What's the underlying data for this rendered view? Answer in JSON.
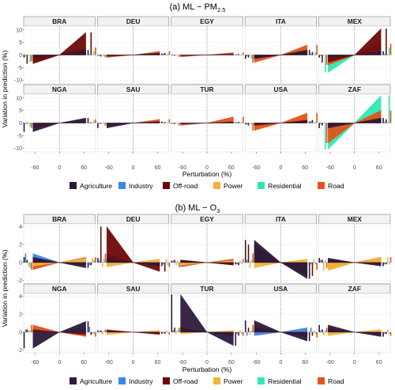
{
  "colors": {
    "Agriculture": "#2d1a3a",
    "Industry": "#3f86e6",
    "Off-road": "#6b0a0a",
    "Power": "#f4b23a",
    "Residential": "#2ee8b4",
    "Road": "#e2531a"
  },
  "chart_data": [
    {
      "type": "area",
      "title_main": "(a) ML − PM",
      "title_sub": "2.5",
      "xlabel": "Perturbation (%)",
      "ylabel": "Variation in prediction (%)",
      "x": [
        -80,
        80
      ],
      "xticks": [
        "-60",
        "0",
        "60"
      ],
      "xtick_values": [
        -60,
        0,
        60
      ],
      "ylim": [
        -11.5,
        11.5
      ],
      "yticks": [
        -10,
        -5,
        0,
        5,
        10
      ],
      "ytick_labels": [
        "-10",
        "-5",
        "0",
        "5",
        "10"
      ],
      "legend": [
        "Agriculture",
        "Industry",
        "Off-road",
        "Power",
        "Residential",
        "Road"
      ],
      "panels": [
        {
          "name": "BRA",
          "series": {
            "Agriculture": [
              -1.0,
              2.0
            ],
            "Industry": [
              -0.3,
              0.3
            ],
            "Off-road": [
              -3.5,
              9.0
            ],
            "Power": [
              -0.2,
              0.2
            ],
            "Residential": [
              -2.8,
              1.5
            ],
            "Road": [
              -2.5,
              3.0
            ]
          }
        },
        {
          "name": "DEU",
          "series": {
            "Agriculture": [
              -0.3,
              0.6
            ],
            "Industry": [
              -0.4,
              0.5
            ],
            "Off-road": [
              -0.6,
              0.8
            ],
            "Power": [
              -0.1,
              0.1
            ],
            "Residential": [
              -0.5,
              0.4
            ],
            "Road": [
              -1.0,
              1.5
            ]
          }
        },
        {
          "name": "EGY",
          "series": {
            "Agriculture": [
              -0.2,
              0.2
            ],
            "Industry": [
              -0.2,
              0.3
            ],
            "Off-road": [
              -0.3,
              0.4
            ],
            "Power": [
              -0.1,
              0.1
            ],
            "Residential": [
              -0.2,
              0.2
            ],
            "Road": [
              -0.8,
              1.0
            ]
          }
        },
        {
          "name": "ITA",
          "series": {
            "Agriculture": [
              -1.5,
              2.0
            ],
            "Industry": [
              -0.5,
              0.6
            ],
            "Off-road": [
              -1.0,
              1.2
            ],
            "Power": [
              -0.1,
              0.1
            ],
            "Residential": [
              -1.5,
              1.2
            ],
            "Road": [
              -3.0,
              4.0
            ]
          }
        },
        {
          "name": "MEX",
          "series": {
            "Agriculture": [
              -1.0,
              1.5
            ],
            "Industry": [
              -0.5,
              0.5
            ],
            "Off-road": [
              -3.0,
              10.5
            ],
            "Power": [
              -0.2,
              0.2
            ],
            "Residential": [
              -7.0,
              3.0
            ],
            "Road": [
              -4.0,
              4.5
            ]
          }
        },
        {
          "name": "NGA",
          "series": {
            "Agriculture": [
              -3.5,
              2.0
            ],
            "Industry": [
              -0.2,
              0.2
            ],
            "Off-road": [
              -0.3,
              0.3
            ],
            "Power": [
              -0.1,
              0.1
            ],
            "Residential": [
              -1.5,
              1.0
            ],
            "Road": [
              -2.0,
              1.5
            ]
          }
        },
        {
          "name": "SAU",
          "series": {
            "Agriculture": [
              -2.0,
              0.6
            ],
            "Industry": [
              -0.3,
              0.3
            ],
            "Off-road": [
              -0.3,
              0.4
            ],
            "Power": [
              -0.1,
              0.1
            ],
            "Residential": [
              -0.4,
              0.3
            ],
            "Road": [
              -1.0,
              1.5
            ]
          }
        },
        {
          "name": "TUR",
          "series": {
            "Agriculture": [
              -0.3,
              0.3
            ],
            "Industry": [
              -0.3,
              0.3
            ],
            "Off-road": [
              -0.4,
              0.5
            ],
            "Power": [
              -0.1,
              0.1
            ],
            "Residential": [
              -0.3,
              0.3
            ],
            "Road": [
              -1.0,
              2.5
            ]
          }
        },
        {
          "name": "USA",
          "series": {
            "Agriculture": [
              -0.5,
              0.6
            ],
            "Industry": [
              -0.6,
              0.8
            ],
            "Off-road": [
              -1.0,
              1.2
            ],
            "Power": [
              -0.1,
              0.1
            ],
            "Residential": [
              -0.5,
              0.5
            ],
            "Road": [
              -3.0,
              4.0
            ]
          }
        },
        {
          "name": "ZAF",
          "series": {
            "Agriculture": [
              -2.0,
              2.0
            ],
            "Industry": [
              -0.5,
              0.5
            ],
            "Off-road": [
              -1.0,
              1.5
            ],
            "Power": [
              -0.2,
              0.2
            ],
            "Residential": [
              -10.5,
              11.0
            ],
            "Road": [
              -8.0,
              5.0
            ]
          }
        }
      ]
    },
    {
      "type": "area",
      "title_main": "(b) ML − O",
      "title_sub": "3",
      "xlabel": "Perturbation (%)",
      "ylabel": "Variation in prediction (%)",
      "x": [
        -80,
        80
      ],
      "xticks": [
        "-60",
        "0",
        "60"
      ],
      "xtick_values": [
        -60,
        0,
        60
      ],
      "ylim": [
        -2.3,
        4.3
      ],
      "yticks": [
        -2,
        0,
        2,
        4
      ],
      "ytick_labels": [
        "-2",
        "0",
        "2",
        "4"
      ],
      "legend": [
        "Agriculture",
        "Industry",
        "Off-road",
        "Power",
        "Residential",
        "Road"
      ],
      "panels": [
        {
          "name": "BRA",
          "series": {
            "Agriculture": [
              0.6,
              -0.6
            ],
            "Industry": [
              1.0,
              -0.3
            ],
            "Off-road": [
              0.3,
              -0.3
            ],
            "Power": [
              -0.4,
              0.5
            ],
            "Residential": [
              -0.6,
              0.3
            ],
            "Road": [
              -0.8,
              0.6
            ]
          }
        },
        {
          "name": "DEU",
          "series": {
            "Agriculture": [
              0.5,
              -0.4
            ],
            "Industry": [
              0.2,
              -0.2
            ],
            "Off-road": [
              4.0,
              -1.0
            ],
            "Power": [
              -0.5,
              0.4
            ],
            "Residential": [
              0.4,
              -0.3
            ],
            "Road": [
              1.0,
              -0.5
            ]
          }
        },
        {
          "name": "EGY",
          "series": {
            "Agriculture": [
              0.2,
              -0.2
            ],
            "Industry": [
              0.2,
              -0.2
            ],
            "Off-road": [
              0.3,
              -0.3
            ],
            "Power": [
              -0.3,
              0.2
            ],
            "Residential": [
              0.2,
              -0.2
            ],
            "Road": [
              -0.5,
              0.4
            ]
          }
        },
        {
          "name": "ITA",
          "series": {
            "Agriculture": [
              2.5,
              -1.8
            ],
            "Industry": [
              0.3,
              -0.2
            ],
            "Off-road": [
              2.0,
              -1.5
            ],
            "Power": [
              -0.6,
              0.4
            ],
            "Residential": [
              0.3,
              -0.2
            ],
            "Road": [
              1.0,
              -0.8
            ]
          }
        },
        {
          "name": "MEX",
          "series": {
            "Agriculture": [
              0.5,
              -0.4
            ],
            "Industry": [
              0.3,
              -0.2
            ],
            "Off-road": [
              0.3,
              -0.2
            ],
            "Power": [
              -0.9,
              0.6
            ],
            "Residential": [
              0.2,
              -0.2
            ],
            "Road": [
              -0.6,
              0.6
            ]
          }
        },
        {
          "name": "NGA",
          "series": {
            "Agriculture": [
              -1.8,
              1.2
            ],
            "Industry": [
              0.3,
              0.6
            ],
            "Off-road": [
              0.3,
              -0.3
            ],
            "Power": [
              0.2,
              -0.2
            ],
            "Residential": [
              0.2,
              -0.2
            ],
            "Road": [
              0.8,
              -0.5
            ]
          }
        },
        {
          "name": "SAU",
          "series": {
            "Agriculture": [
              0.2,
              -0.2
            ],
            "Industry": [
              0.1,
              -0.1
            ],
            "Off-road": [
              0.2,
              -0.2
            ],
            "Power": [
              -0.3,
              0.2
            ],
            "Residential": [
              0.1,
              -0.1
            ],
            "Road": [
              0.3,
              -0.3
            ]
          }
        },
        {
          "name": "TUR",
          "series": {
            "Agriculture": [
              4.2,
              -1.5
            ],
            "Industry": [
              0.2,
              -0.2
            ],
            "Off-road": [
              0.5,
              -0.4
            ],
            "Power": [
              -0.2,
              0.2
            ],
            "Residential": [
              0.2,
              -0.2
            ],
            "Road": [
              0.5,
              -0.4
            ]
          }
        },
        {
          "name": "USA",
          "series": {
            "Agriculture": [
              1.3,
              -1.0
            ],
            "Industry": [
              -0.4,
              0.5
            ],
            "Off-road": [
              0.5,
              -0.4
            ],
            "Power": [
              -0.3,
              0.2
            ],
            "Residential": [
              0.2,
              -0.2
            ],
            "Road": [
              0.8,
              -0.6
            ]
          }
        },
        {
          "name": "ZAF",
          "series": {
            "Agriculture": [
              0.8,
              -0.5
            ],
            "Industry": [
              0.2,
              -0.2
            ],
            "Off-road": [
              0.3,
              -0.2
            ],
            "Power": [
              -0.4,
              0.3
            ],
            "Residential": [
              0.2,
              -0.2
            ],
            "Road": [
              0.5,
              -0.4
            ]
          }
        }
      ]
    }
  ]
}
